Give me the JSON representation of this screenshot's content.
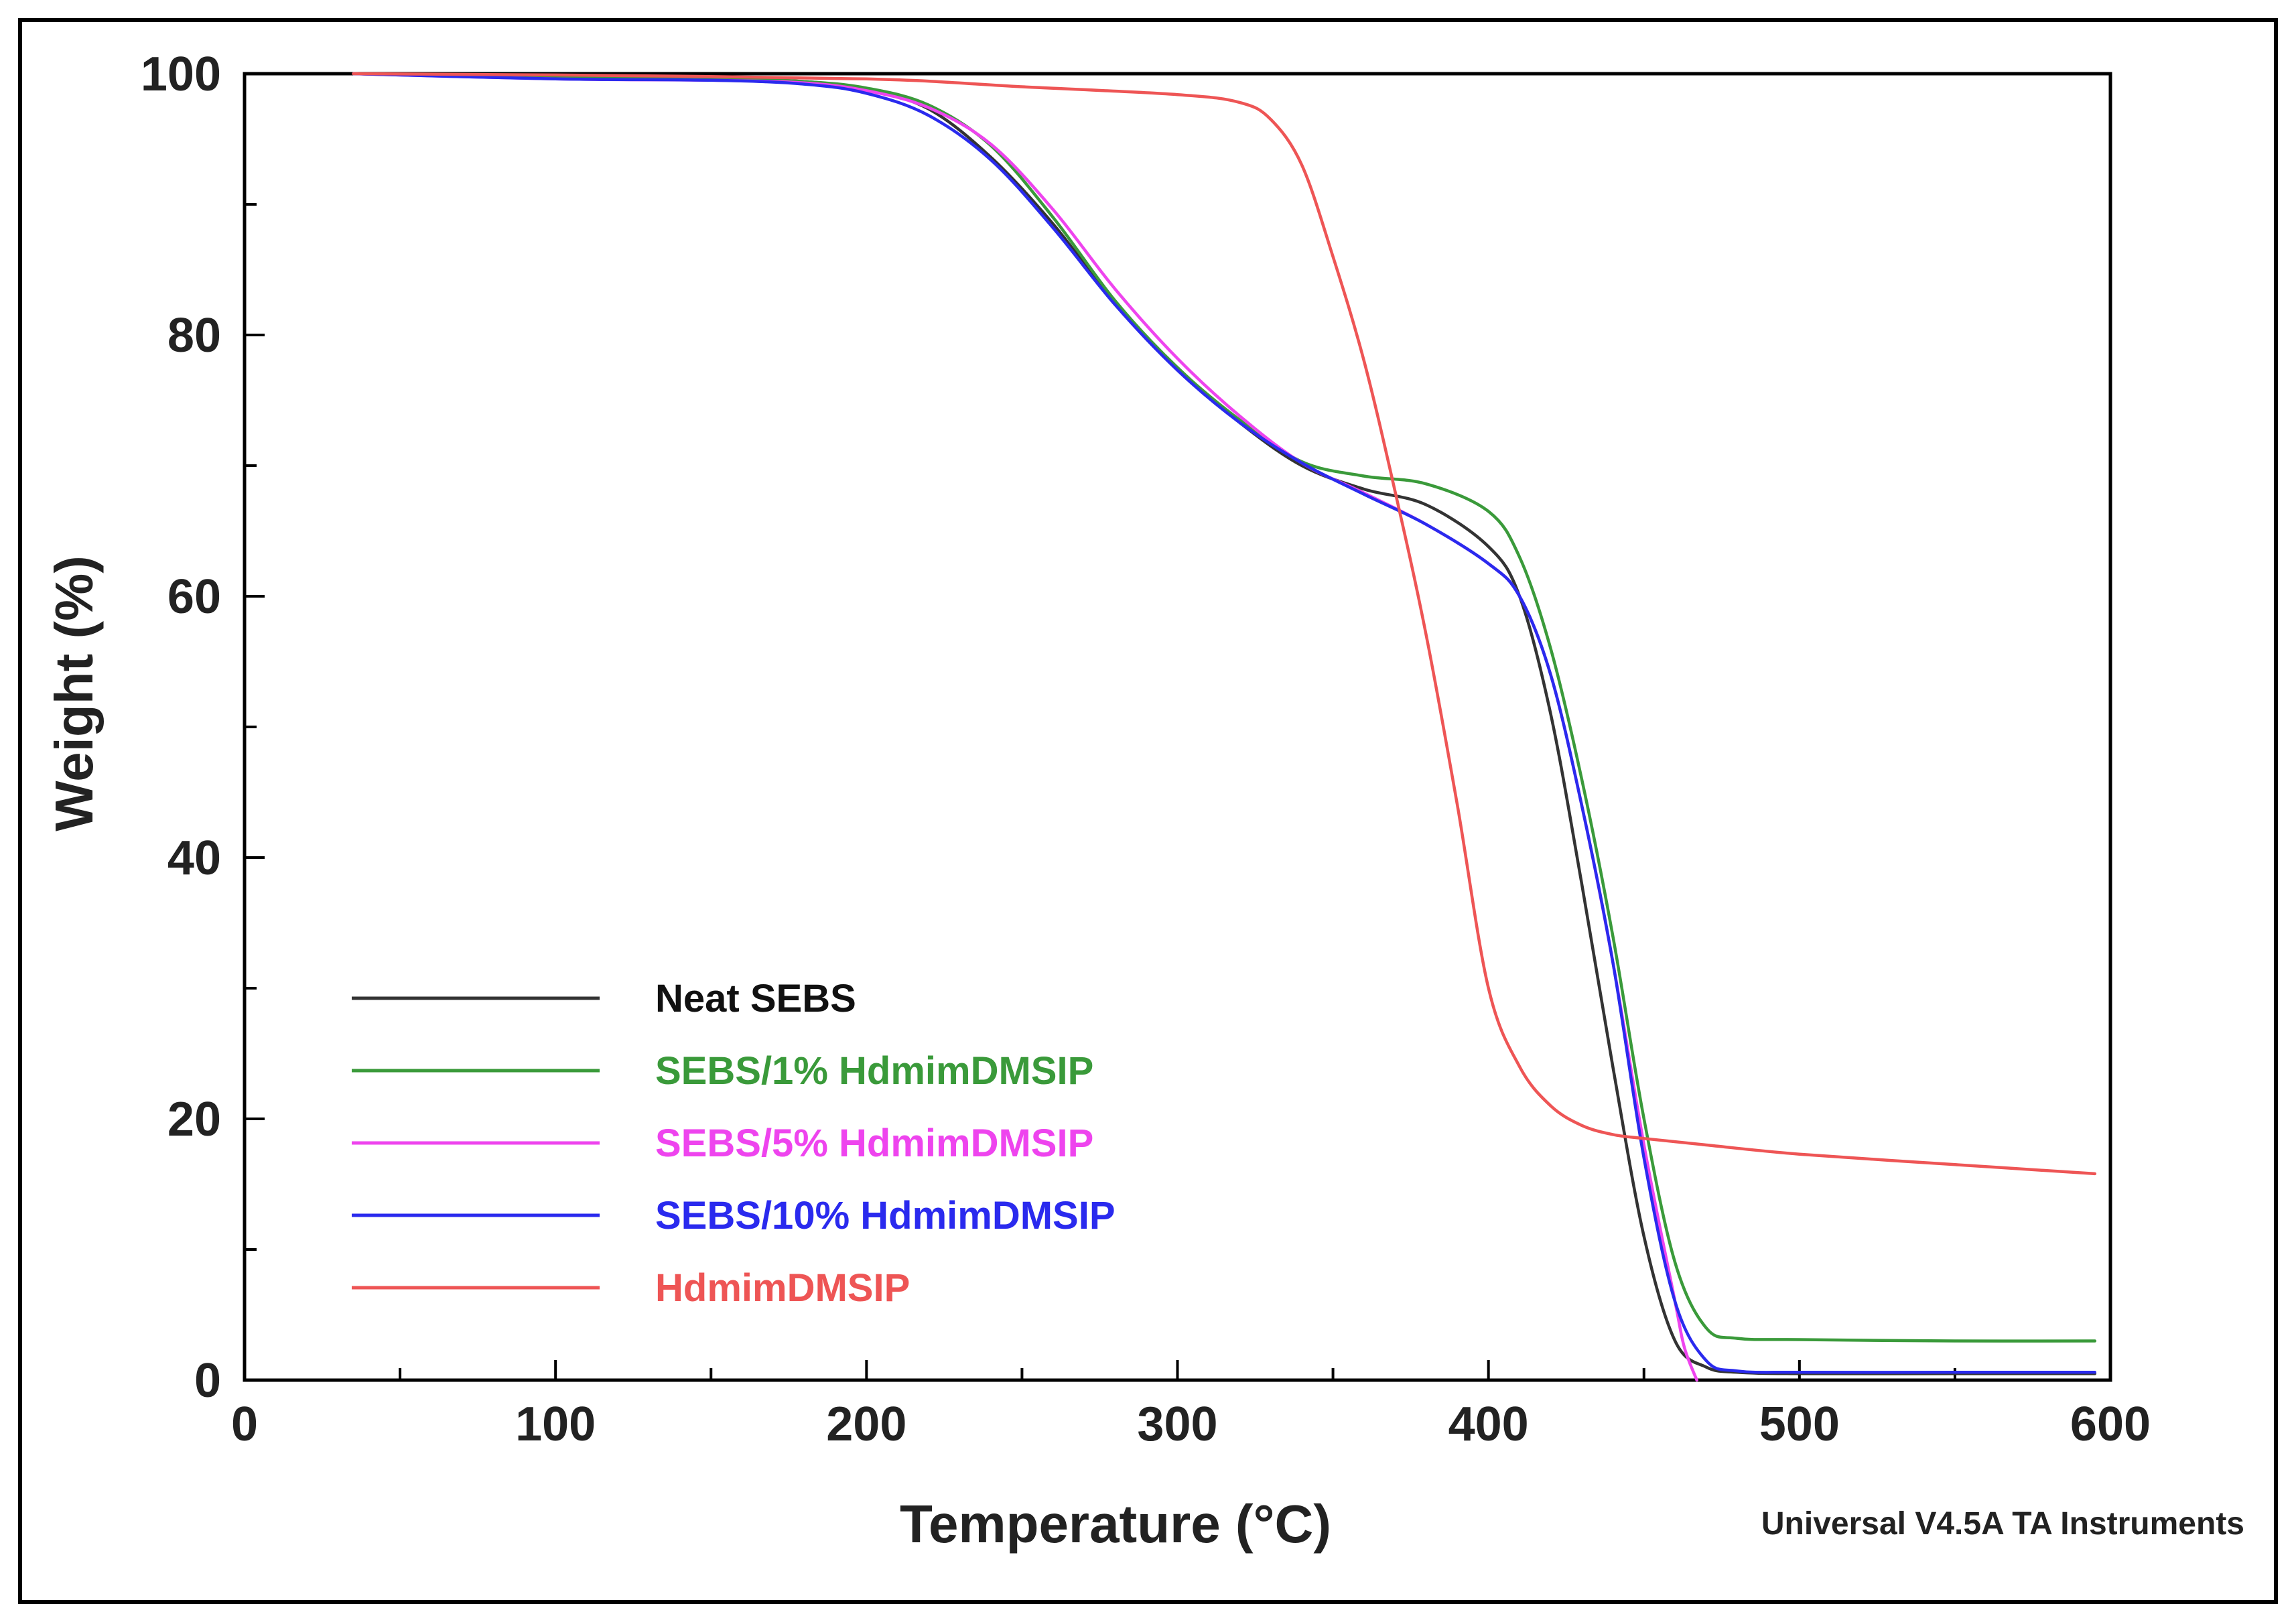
{
  "chart_data": {
    "type": "line",
    "xlabel": "Temperature (°C)",
    "ylabel": "Weight (%)",
    "xlim": [
      0,
      600
    ],
    "ylim": [
      0,
      100
    ],
    "xticks": [
      "0",
      "100",
      "200",
      "300",
      "400",
      "500",
      "600"
    ],
    "yticks": [
      "0",
      "20",
      "40",
      "60",
      "80",
      "100"
    ],
    "grid": false,
    "legend_position": "lower-left",
    "credit": "Universal V4.5A TA Instruments",
    "series": [
      {
        "name": "Neat SEBS",
        "color": "#333333",
        "x": [
          35,
          100,
          150,
          180,
          200,
          220,
          240,
          260,
          280,
          300,
          320,
          340,
          360,
          380,
          400,
          410,
          420,
          430,
          440,
          450,
          460,
          470,
          480,
          500,
          550,
          595
        ],
        "y": [
          100,
          99.7,
          99.6,
          99.4,
          98.8,
          97.3,
          93.6,
          88.5,
          82.4,
          77.5,
          73.3,
          70.0,
          68.2,
          67.0,
          63.8,
          60.0,
          51.0,
          38.0,
          24.0,
          11.0,
          3.0,
          1.0,
          0.6,
          0.5,
          0.5,
          0.5
        ]
      },
      {
        "name": "SEBS/1% HdmimDMSIP",
        "color": "#3a9a3a",
        "x": [
          35,
          100,
          150,
          180,
          200,
          220,
          240,
          260,
          280,
          300,
          320,
          340,
          360,
          380,
          400,
          410,
          420,
          430,
          440,
          450,
          460,
          470,
          480,
          500,
          550,
          595
        ],
        "y": [
          100,
          99.7,
          99.6,
          99.4,
          98.9,
          97.6,
          94.5,
          89.0,
          82.6,
          77.5,
          73.5,
          70.3,
          69.2,
          68.6,
          66.5,
          63.0,
          56.0,
          46.0,
          34.0,
          20.0,
          9.0,
          4.0,
          3.2,
          3.1,
          3.0,
          3.0
        ]
      },
      {
        "name": "SEBS/5% HdmimDMSIP",
        "color": "#ee44ee",
        "x": [
          35,
          100,
          150,
          180,
          200,
          220,
          240,
          260,
          280,
          300,
          320,
          340,
          360,
          380,
          400,
          410,
          420,
          430,
          440,
          450,
          460,
          463,
          467
        ],
        "y": [
          100,
          99.6,
          99.5,
          99.3,
          98.7,
          97.4,
          94.6,
          89.6,
          83.5,
          78.2,
          73.8,
          70.2,
          67.9,
          65.5,
          62.5,
          60.0,
          54.0,
          44.0,
          32.0,
          18.0,
          6.0,
          2.5,
          0.0
        ]
      },
      {
        "name": "SEBS/10% HdmimDMSIP",
        "color": "#2a2aee",
        "x": [
          35,
          100,
          150,
          180,
          200,
          220,
          240,
          260,
          280,
          300,
          320,
          340,
          360,
          380,
          400,
          410,
          420,
          430,
          440,
          450,
          460,
          470,
          480,
          500,
          550,
          595
        ],
        "y": [
          100,
          99.6,
          99.5,
          99.2,
          98.5,
          96.8,
          93.4,
          88.2,
          82.3,
          77.3,
          73.3,
          70.2,
          67.8,
          65.5,
          62.5,
          60.0,
          54.0,
          44.0,
          32.0,
          17.0,
          6.0,
          1.5,
          0.7,
          0.6,
          0.6,
          0.6
        ]
      },
      {
        "name": "HdmimDMSIP",
        "color": "#ee5555",
        "x": [
          35,
          100,
          200,
          250,
          300,
          320,
          330,
          340,
          350,
          360,
          370,
          380,
          390,
          400,
          410,
          420,
          430,
          440,
          450,
          470,
          500,
          550,
          595
        ],
        "y": [
          100,
          99.9,
          99.6,
          99.0,
          98.4,
          97.8,
          96.5,
          93.0,
          86.0,
          78.0,
          68.0,
          57.0,
          44.0,
          30.0,
          24.0,
          21.0,
          19.5,
          18.8,
          18.5,
          18.0,
          17.3,
          16.5,
          15.8
        ]
      }
    ]
  }
}
